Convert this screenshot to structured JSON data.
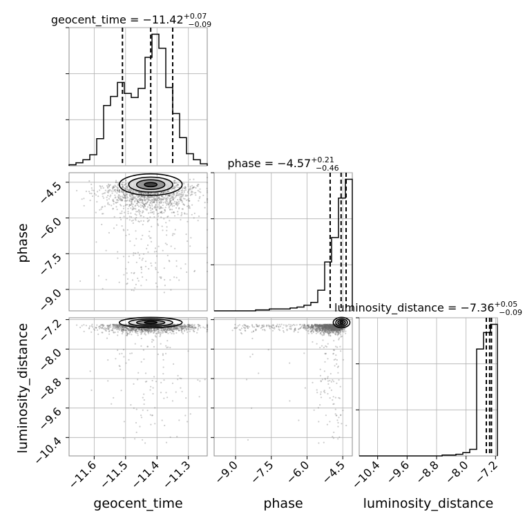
{
  "chart_data": {
    "type": "corner",
    "parameters": [
      "geocent_time",
      "phase",
      "luminosity_distance"
    ],
    "titles": [
      {
        "name": "geocent_time",
        "value": "−11.42",
        "plus": "+0.07",
        "minus": "−0.09"
      },
      {
        "name": "phase",
        "value": "−4.57",
        "plus": "+0.21",
        "minus": "−0.46"
      },
      {
        "name": "luminosity_distance",
        "value": "−7.36",
        "plus": "+0.05",
        "minus": "−0.09"
      }
    ],
    "ranges": {
      "geocent_time": [
        -11.68,
        -11.24
      ],
      "phase": [
        -9.9,
        -4.1
      ],
      "luminosity_distance": [
        -10.9,
        -7.15
      ]
    },
    "ticks": {
      "geocent_time": [
        -11.6,
        -11.5,
        -11.4,
        -11.3
      ],
      "phase": [
        -9.0,
        -7.5,
        -6.0,
        -4.5
      ],
      "luminosity_distance": [
        -10.4,
        -9.6,
        -8.8,
        -8.0,
        -7.2
      ]
    },
    "tick_labels": {
      "geocent_time": [
        "−11.6",
        "−11.5",
        "−11.4",
        "−11.3"
      ],
      "phase": [
        "−9.0",
        "−7.5",
        "−6.0",
        "−4.5"
      ],
      "luminosity_distance": [
        "−10.4",
        "−9.6",
        "−8.8",
        "−8.0",
        "−7.2"
      ]
    },
    "histograms": {
      "geocent_time": {
        "edges": [
          -11.68,
          -11.658,
          -11.636,
          -11.614,
          -11.592,
          -11.57,
          -11.548,
          -11.526,
          -11.504,
          -11.482,
          -11.46,
          -11.438,
          -11.416,
          -11.394,
          -11.372,
          -11.35,
          -11.328,
          -11.306,
          -11.284,
          -11.262,
          -11.24
        ],
        "counts": [
          1,
          3,
          6,
          11,
          27,
          60,
          69,
          83,
          72,
          68,
          77,
          108,
          131,
          117,
          78,
          52,
          28,
          12,
          6,
          2
        ]
      },
      "phase": {
        "edges": [
          -9.9,
          -9.61,
          -9.32,
          -9.03,
          -8.74,
          -8.45,
          -8.16,
          -7.87,
          -7.58,
          -7.29,
          -7.0,
          -6.71,
          -6.42,
          -6.13,
          -5.84,
          -5.55,
          -5.26,
          -4.97,
          -4.68,
          -4.39,
          -4.1
        ],
        "counts": [
          0,
          0,
          0,
          0,
          0,
          0,
          1,
          1,
          2,
          2,
          2,
          3,
          4,
          6,
          9,
          22,
          52,
          78,
          120,
          140
        ]
      },
      "luminosity_distance": {
        "edges": [
          -10.9,
          -10.7125,
          -10.525,
          -10.3375,
          -10.15,
          -9.9625,
          -9.775,
          -9.5875,
          -9.4,
          -9.2125,
          -9.025,
          -8.8375,
          -8.65,
          -8.4625,
          -8.275,
          -8.0875,
          -7.9,
          -7.7125,
          -7.525,
          -7.3375,
          -7.15
        ],
        "counts": [
          0,
          0,
          0,
          0,
          0,
          0,
          0,
          0,
          0,
          0,
          0,
          0,
          1,
          1,
          2,
          4,
          8,
          130,
          150,
          160
        ]
      }
    },
    "quantiles": {
      "geocent_time": [
        -11.51,
        -11.42,
        -11.35
      ],
      "phase": [
        -5.03,
        -4.57,
        -4.36
      ],
      "luminosity_distance": [
        -7.45,
        -7.36,
        -7.31
      ]
    },
    "grid": true
  }
}
